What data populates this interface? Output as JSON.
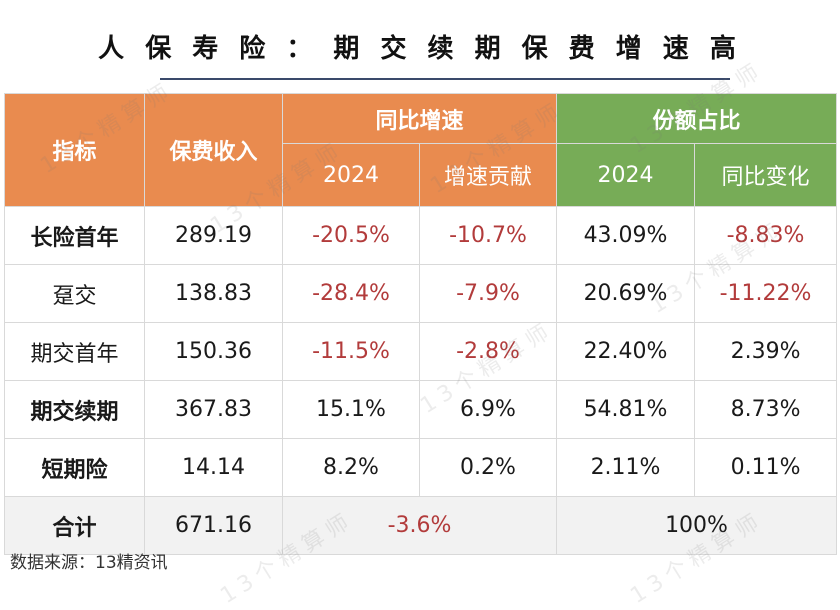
{
  "title": "人 保 寿 险 ： 期 交 续 期 保 费 增 速 高",
  "header": {
    "indicator": "指标",
    "premium": "保费收入",
    "yoy_growth": "同比增速",
    "share": "份额占比",
    "growth_2024": "2024",
    "growth_contribution": "增速贡献",
    "share_2024": "2024",
    "share_change": "同比变化"
  },
  "rows": [
    {
      "label": "长险首年",
      "premium": "289.19",
      "growth": "-20.5%",
      "contribution": "-10.7%",
      "share": "43.09%",
      "change": "-8.83%"
    },
    {
      "label": "趸交",
      "premium": "138.83",
      "growth": "-28.4%",
      "contribution": "-7.9%",
      "share": "20.69%",
      "change": "-11.22%"
    },
    {
      "label": "期交首年",
      "premium": "150.36",
      "growth": "-11.5%",
      "contribution": "-2.8%",
      "share": "22.40%",
      "change": "2.39%"
    },
    {
      "label": "期交续期",
      "premium": "367.83",
      "growth": "15.1%",
      "contribution": "6.9%",
      "share": "54.81%",
      "change": "8.73%"
    },
    {
      "label": "短期险",
      "premium": "14.14",
      "growth": "8.2%",
      "contribution": "0.2%",
      "share": "2.11%",
      "change": "0.11%"
    }
  ],
  "total": {
    "label": "合计",
    "premium": "671.16",
    "growth": "-3.6%",
    "share": "100%"
  },
  "source": "数据来源：13精资讯",
  "watermark": "13个精算师",
  "colors": {
    "orange_header": "#e98b4f",
    "green_header": "#77ac57",
    "negative": "#b23b3b"
  }
}
